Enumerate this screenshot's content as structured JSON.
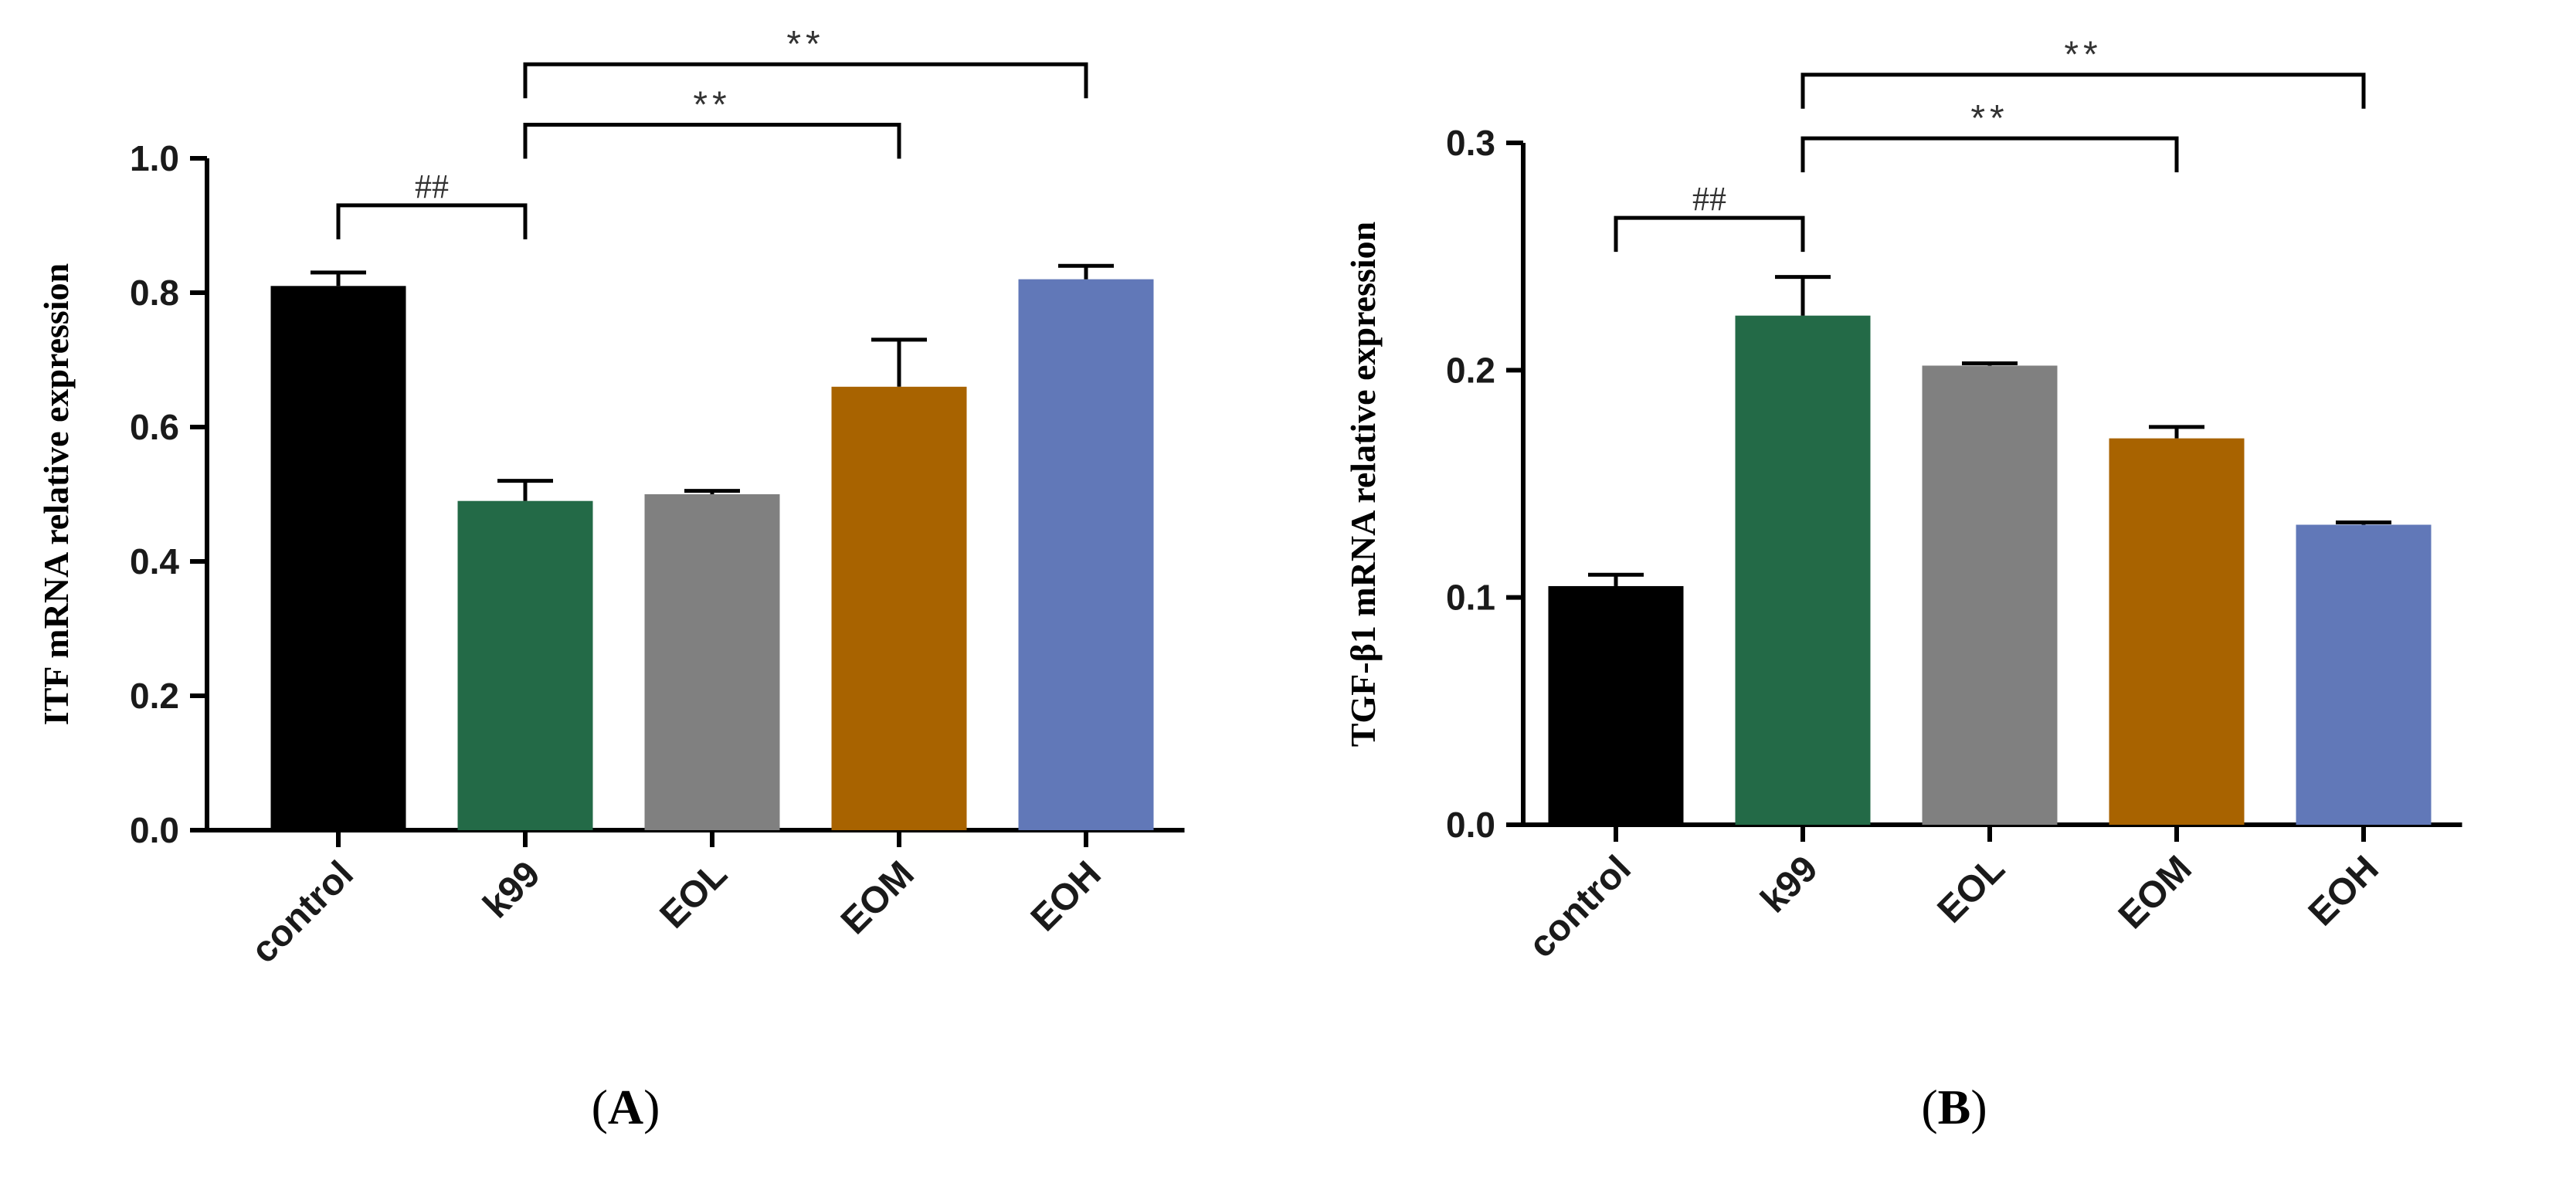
{
  "colors": {
    "control": "#000000",
    "k99": "#236a47",
    "EOL": "#808080",
    "EOM": "#a86300",
    "EOH": "#6178b8"
  },
  "chart_data": [
    {
      "id": "A",
      "type": "bar",
      "panel_label_open": "(",
      "panel_label": "A",
      "panel_label_close": ")",
      "ylabel": "ITF mRNA relative expression",
      "ylim": [
        0,
        1.0
      ],
      "yticks": [
        "0.0",
        "0.2",
        "0.4",
        "0.6",
        "0.8",
        "1.0"
      ],
      "categories": [
        "control",
        "k99",
        "EOL",
        "EOM",
        "EOH"
      ],
      "values": [
        0.81,
        0.49,
        0.5,
        0.66,
        0.82
      ],
      "errors": [
        0.02,
        0.03,
        0.005,
        0.07,
        0.02
      ],
      "annotations": [
        {
          "from": 0,
          "to": 1,
          "level": 0.93,
          "text": "##"
        },
        {
          "from": 1,
          "to": 3,
          "level": 1.05,
          "text": "**"
        },
        {
          "from": 1,
          "to": 4,
          "level": 1.14,
          "text": "**"
        }
      ]
    },
    {
      "id": "B",
      "type": "bar",
      "panel_label_open": "(",
      "panel_label": "B",
      "panel_label_close": ")",
      "ylabel": "TGF-β1 mRNA relative expression",
      "ylim": [
        0,
        0.3
      ],
      "yticks": [
        "0.0",
        "0.1",
        "0.2",
        "0.3"
      ],
      "categories": [
        "control",
        "k99",
        "EOL",
        "EOM",
        "EOH"
      ],
      "values": [
        0.105,
        0.224,
        0.202,
        0.17,
        0.132
      ],
      "errors": [
        0.005,
        0.017,
        0.001,
        0.005,
        0.001
      ],
      "annotations": [
        {
          "from": 0,
          "to": 1,
          "level": 0.267,
          "text": "##"
        },
        {
          "from": 1,
          "to": 3,
          "level": 0.302,
          "text": "**"
        },
        {
          "from": 1,
          "to": 4,
          "level": 0.33,
          "text": "**"
        }
      ]
    }
  ]
}
